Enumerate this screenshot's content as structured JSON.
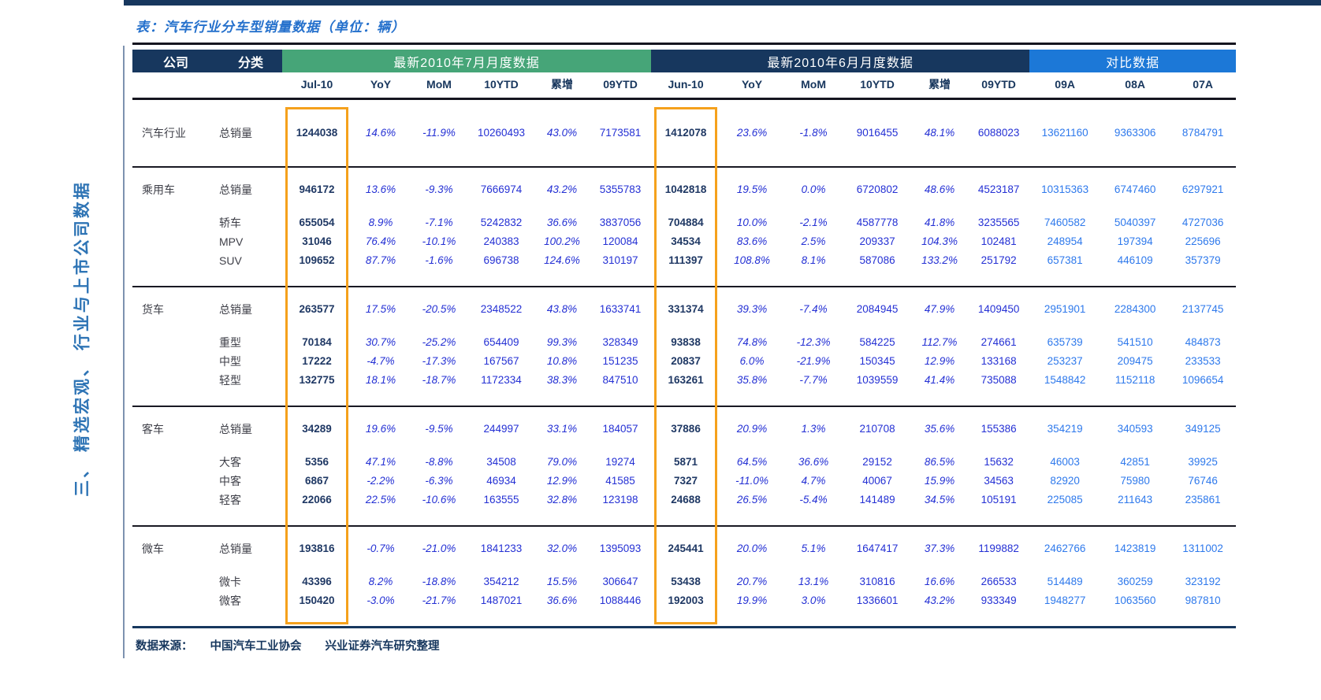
{
  "page": {
    "title": "表：汽车行业分车型销量数据（单位：辆）",
    "sidebar_text": "三、 精选宏观、 行业与上市公司数据",
    "footer": {
      "source_label": "数据来源：",
      "sources": [
        "中国汽车工业协会",
        "兴业证券汽车研究整理"
      ]
    }
  },
  "table": {
    "corner_headers": [
      "公司",
      "分类"
    ],
    "bands": [
      {
        "label": "最新2010年7月月度数据",
        "color": "#46A578",
        "span": 6
      },
      {
        "label": "最新2010年6月月度数据",
        "color": "#17375E",
        "span": 6
      },
      {
        "label": "对比数据",
        "color": "#1C78D7",
        "span": 3
      }
    ],
    "columns": [
      "Jul-10",
      "YoY",
      "MoM",
      "10YTD",
      "累增",
      "09YTD",
      "Jun-10",
      "YoY",
      "MoM",
      "10YTD",
      "累增",
      "09YTD",
      "09A",
      "08A",
      "07A"
    ],
    "highlighted_columns": [
      "Jul-10",
      "Jun-10"
    ],
    "highlight_color": "#F5A11C",
    "groups": [
      {
        "company": "汽车行业",
        "rows": [
          {
            "category": "总销量",
            "values": [
              "1244038",
              "14.6%",
              "-11.9%",
              "10260493",
              "43.0%",
              "7173581",
              "1412078",
              "23.6%",
              "-1.8%",
              "9016455",
              "48.1%",
              "6088023",
              "13621160",
              "9363306",
              "8784791"
            ]
          }
        ]
      },
      {
        "company": "乘用车",
        "rows": [
          {
            "category": "总销量",
            "values": [
              "946172",
              "13.6%",
              "-9.3%",
              "7666974",
              "43.2%",
              "5355783",
              "1042818",
              "19.5%",
              "0.0%",
              "6720802",
              "48.6%",
              "4523187",
              "10315363",
              "6747460",
              "6297921"
            ]
          },
          {
            "category": "轿车",
            "values": [
              "655054",
              "8.9%",
              "-7.1%",
              "5242832",
              "36.6%",
              "3837056",
              "704884",
              "10.0%",
              "-2.1%",
              "4587778",
              "41.8%",
              "3235565",
              "7460582",
              "5040397",
              "4727036"
            ]
          },
          {
            "category": "MPV",
            "values": [
              "31046",
              "76.4%",
              "-10.1%",
              "240383",
              "100.2%",
              "120084",
              "34534",
              "83.6%",
              "2.5%",
              "209337",
              "104.3%",
              "102481",
              "248954",
              "197394",
              "225696"
            ]
          },
          {
            "category": "SUV",
            "values": [
              "109652",
              "87.7%",
              "-1.6%",
              "696738",
              "124.6%",
              "310197",
              "111397",
              "108.8%",
              "8.1%",
              "587086",
              "133.2%",
              "251792",
              "657381",
              "446109",
              "357379"
            ]
          }
        ]
      },
      {
        "company": "货车",
        "rows": [
          {
            "category": "总销量",
            "values": [
              "263577",
              "17.5%",
              "-20.5%",
              "2348522",
              "43.8%",
              "1633741",
              "331374",
              "39.3%",
              "-7.4%",
              "2084945",
              "47.9%",
              "1409450",
              "2951901",
              "2284300",
              "2137745"
            ]
          },
          {
            "category": "重型",
            "values": [
              "70184",
              "30.7%",
              "-25.2%",
              "654409",
              "99.3%",
              "328349",
              "93838",
              "74.8%",
              "-12.3%",
              "584225",
              "112.7%",
              "274661",
              "635739",
              "541510",
              "484873"
            ]
          },
          {
            "category": "中型",
            "values": [
              "17222",
              "-4.7%",
              "-17.3%",
              "167567",
              "10.8%",
              "151235",
              "20837",
              "6.0%",
              "-21.9%",
              "150345",
              "12.9%",
              "133168",
              "253237",
              "209475",
              "233533"
            ]
          },
          {
            "category": "轻型",
            "values": [
              "132775",
              "18.1%",
              "-18.7%",
              "1172334",
              "38.3%",
              "847510",
              "163261",
              "35.8%",
              "-7.7%",
              "1039559",
              "41.4%",
              "735088",
              "1548842",
              "1152118",
              "1096654"
            ]
          }
        ]
      },
      {
        "company": "客车",
        "rows": [
          {
            "category": "总销量",
            "values": [
              "34289",
              "19.6%",
              "-9.5%",
              "244997",
              "33.1%",
              "184057",
              "37886",
              "20.9%",
              "1.3%",
              "210708",
              "35.6%",
              "155386",
              "354219",
              "340593",
              "349125"
            ]
          },
          {
            "category": "大客",
            "values": [
              "5356",
              "47.1%",
              "-8.8%",
              "34508",
              "79.0%",
              "19274",
              "5871",
              "64.5%",
              "36.6%",
              "29152",
              "86.5%",
              "15632",
              "46003",
              "42851",
              "39925"
            ]
          },
          {
            "category": "中客",
            "values": [
              "6867",
              "-2.2%",
              "-6.3%",
              "46934",
              "12.9%",
              "41585",
              "7327",
              "-11.0%",
              "4.7%",
              "40067",
              "15.9%",
              "34563",
              "82920",
              "75980",
              "76746"
            ]
          },
          {
            "category": "轻客",
            "values": [
              "22066",
              "22.5%",
              "-10.6%",
              "163555",
              "32.8%",
              "123198",
              "24688",
              "26.5%",
              "-5.4%",
              "141489",
              "34.5%",
              "105191",
              "225085",
              "211643",
              "235861"
            ]
          }
        ]
      },
      {
        "company": "微车",
        "rows": [
          {
            "category": "总销量",
            "values": [
              "193816",
              "-0.7%",
              "-21.0%",
              "1841233",
              "32.0%",
              "1395093",
              "245441",
              "20.0%",
              "5.1%",
              "1647417",
              "37.3%",
              "1199882",
              "2462766",
              "1423819",
              "1311002"
            ]
          },
          {
            "category": "微卡",
            "values": [
              "43396",
              "8.2%",
              "-18.8%",
              "354212",
              "15.5%",
              "306647",
              "53438",
              "20.7%",
              "13.1%",
              "310816",
              "16.6%",
              "266533",
              "514489",
              "360259",
              "323192"
            ]
          },
          {
            "category": "微客",
            "values": [
              "150420",
              "-3.0%",
              "-21.7%",
              "1487021",
              "36.6%",
              "1088446",
              "192003",
              "19.9%",
              "3.0%",
              "1336601",
              "43.2%",
              "933349",
              "1948277",
              "1063560",
              "987810"
            ]
          }
        ]
      }
    ]
  }
}
